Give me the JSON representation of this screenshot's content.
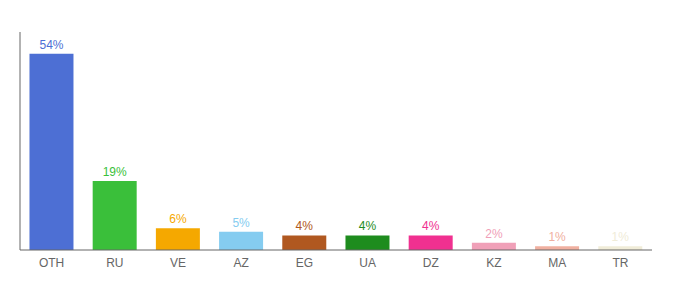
{
  "chart_data": {
    "type": "bar",
    "categories": [
      "OTH",
      "RU",
      "VE",
      "AZ",
      "EG",
      "UA",
      "DZ",
      "KZ",
      "MA",
      "TR"
    ],
    "values": [
      54,
      19,
      6,
      5,
      4,
      4,
      4,
      2,
      1,
      1
    ],
    "value_labels": [
      "54%",
      "19%",
      "6%",
      "5%",
      "4%",
      "4%",
      "4%",
      "2%",
      "1%",
      "1%"
    ],
    "colors": [
      "#4d6fd4",
      "#3abf3a",
      "#f5a800",
      "#85ccf0",
      "#b05820",
      "#1e8c1e",
      "#f03090",
      "#f0a0b8",
      "#f0b0a0",
      "#f0ecd8"
    ],
    "ylim": [
      0,
      60
    ],
    "data_labels": true,
    "tick_labels": "x",
    "grid": false
  }
}
